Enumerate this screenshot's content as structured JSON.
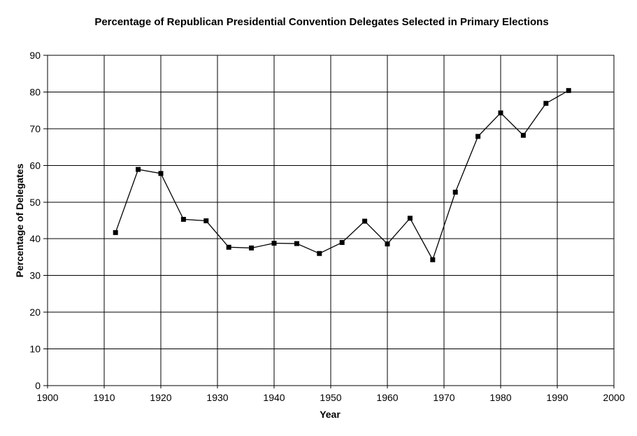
{
  "chart_data": {
    "type": "line",
    "title": "Percentage of Republican Presidential Convention Delegates Selected in Primary Elections",
    "xlabel": "Year",
    "ylabel": "Percentage of Delegates",
    "xlim": [
      1900,
      2000
    ],
    "ylim": [
      0,
      90
    ],
    "xticks": [
      1900,
      1910,
      1920,
      1930,
      1940,
      1950,
      1960,
      1970,
      1980,
      1990,
      2000
    ],
    "yticks": [
      0,
      10,
      20,
      30,
      40,
      50,
      60,
      70,
      80,
      90
    ],
    "grid": true,
    "legend": "none",
    "background_color": "#ffffff",
    "grid_color": "#000000",
    "line_color": "#000000",
    "marker": "square",
    "marker_color": "#000000",
    "series": [
      {
        "name": "Percentage of Delegates",
        "x": [
          1912,
          1916,
          1920,
          1924,
          1928,
          1932,
          1936,
          1940,
          1944,
          1948,
          1952,
          1956,
          1960,
          1964,
          1968,
          1972,
          1976,
          1980,
          1984,
          1988,
          1992
        ],
        "y": [
          41.7,
          58.9,
          57.8,
          45.3,
          44.9,
          37.7,
          37.5,
          38.8,
          38.7,
          36.0,
          39.0,
          44.8,
          38.6,
          45.6,
          34.3,
          52.7,
          67.9,
          74.3,
          68.2,
          76.9,
          80.4
        ]
      }
    ]
  }
}
